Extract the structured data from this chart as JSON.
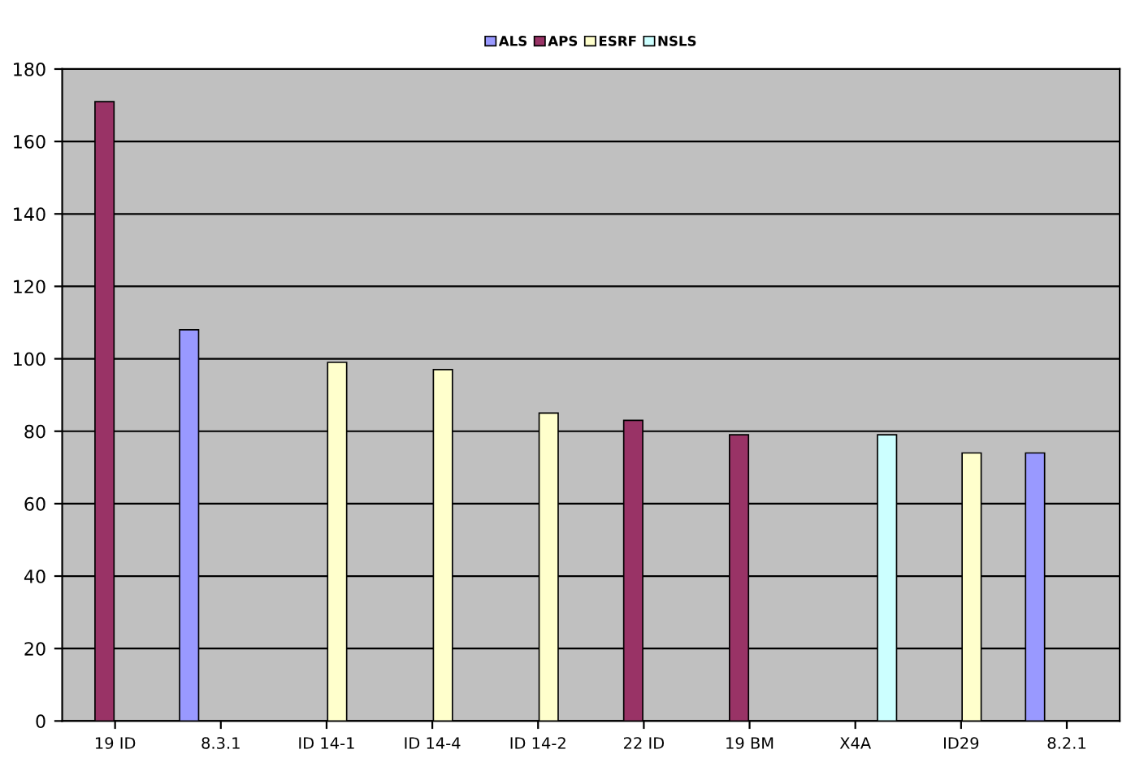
{
  "chart_data": {
    "type": "bar",
    "categories": [
      "19 ID",
      "8.3.1",
      "ID 14-1",
      "ID 14-4",
      "ID 14-2",
      "22 ID",
      "19 BM",
      "X4A",
      "ID29",
      "8.2.1"
    ],
    "series": [
      {
        "name": "ALS",
        "color": "#9999ff",
        "values": [
          null,
          108,
          null,
          null,
          null,
          null,
          null,
          null,
          null,
          74
        ]
      },
      {
        "name": "APS",
        "color": "#993366",
        "values": [
          171,
          null,
          null,
          null,
          null,
          83,
          79,
          null,
          null,
          null
        ]
      },
      {
        "name": "ESRF",
        "color": "#ffffcc",
        "values": [
          null,
          null,
          99,
          97,
          85,
          null,
          null,
          null,
          74,
          null
        ]
      },
      {
        "name": "NSLS",
        "color": "#ccffff",
        "values": [
          null,
          null,
          null,
          null,
          null,
          null,
          null,
          79,
          null,
          null
        ]
      }
    ],
    "ylim": [
      0,
      180
    ],
    "yticks": [
      0,
      20,
      40,
      60,
      80,
      100,
      120,
      140,
      160,
      180
    ],
    "grid": "y",
    "legend": "top"
  }
}
